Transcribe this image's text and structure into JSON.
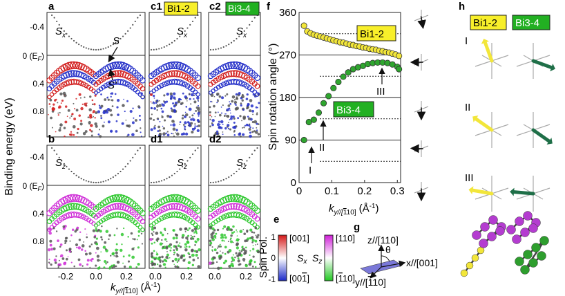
{
  "panels": {
    "a": "a",
    "b": "b",
    "c1": "c1",
    "c2": "c2",
    "d1": "d1",
    "d2": "d2",
    "e": "e",
    "f": "f",
    "g": "g",
    "h": "h"
  },
  "tags": {
    "bi12": "Bi1-2",
    "bi34": "Bi3-4"
  },
  "band_labels": {
    "sx": "S",
    "sx_sub": "x",
    "sz": "S",
    "sz_sub": "z",
    "S": "S",
    "Sp": "S'"
  },
  "band_axes": {
    "yticks": [
      "-0.4",
      "0 (E",
      "F",
      ")",
      "0.4",
      "0.8"
    ],
    "xticks_ab": [
      "-0.2",
      "0.0",
      "0.2"
    ],
    "xticks_cd": [
      "0.0",
      "0.2"
    ],
    "ylabel": "Binding energy (eV)",
    "xlabel_k": "k",
    "xlabel_sub": "y//[",
    "xlabel_bar": "1",
    "xlabel_sub2": "10]",
    "xlabel_unit": "(Å",
    "xlabel_exp": "-1",
    "xlabel_close": ")"
  },
  "chart_data": {
    "type": "scatter",
    "ylabel": "Spin rotation angle (°)",
    "xlabel": "ky//[1̄10] (Å-1)",
    "yticks": [
      "0",
      "90",
      "180",
      "270",
      "360"
    ],
    "xticks": [
      "0",
      "0.1",
      "0.2",
      "0.3"
    ],
    "xlim": [
      0,
      0.31
    ],
    "ylim": [
      0,
      360
    ],
    "series": [
      {
        "name": "Bi1-2",
        "color": "#f2e63a",
        "x": [
          0.015,
          0.025,
          0.035,
          0.045,
          0.055,
          0.065,
          0.075,
          0.085,
          0.095,
          0.105,
          0.115,
          0.125,
          0.135,
          0.145,
          0.155,
          0.165,
          0.175,
          0.185,
          0.195,
          0.205,
          0.215,
          0.225,
          0.235,
          0.245,
          0.255,
          0.265,
          0.275,
          0.285,
          0.295,
          0.305
        ],
        "y": [
          332,
          320,
          316,
          313,
          311,
          309,
          307,
          305,
          303,
          301,
          299,
          297,
          296,
          294,
          292,
          291,
          289,
          288,
          286,
          285,
          283,
          282,
          281,
          279,
          278,
          276,
          275,
          273,
          271,
          268
        ]
      },
      {
        "name": "Bi3-4",
        "color": "#2fa52f",
        "x": [
          0.015,
          0.03,
          0.045,
          0.06,
          0.075,
          0.09,
          0.105,
          0.12,
          0.135,
          0.15,
          0.165,
          0.18,
          0.195,
          0.21,
          0.225,
          0.24,
          0.255,
          0.27,
          0.285,
          0.3,
          0.305
        ],
        "y": [
          90,
          128,
          133,
          148,
          168,
          183,
          200,
          213,
          224,
          233,
          240,
          244,
          247,
          251,
          253,
          254,
          254,
          253,
          250,
          245,
          240
        ]
      }
    ],
    "hlines_solid": [
      90,
      180,
      270
    ],
    "hlines_dotted": [
      45,
      135,
      225,
      315
    ],
    "annotations": [
      "I",
      "II",
      "III"
    ]
  },
  "legend_e": {
    "title": "Spin Pol.",
    "ticks": [
      "1",
      "0",
      "-1"
    ],
    "sx": "S",
    "sx_sub": "x",
    "sz": "S",
    "sz_sub": "z",
    "sx_top": "[001]",
    "sx_bot_a": "[00",
    "sx_bot_bar": "1",
    "sx_bot_b": "]",
    "sz_top": "[110]",
    "sz_bot_a": "[",
    "sz_bot_bar": "1",
    "sz_bot_b": "10]"
  },
  "axes_g": {
    "z": "z//[110]",
    "theta": "θ",
    "x": "x//[001]",
    "y_a": "y//[",
    "y_bar": "1",
    "y_b": "10]"
  },
  "roman": {
    "I": "I",
    "II": "II",
    "III": "III"
  },
  "colors": {
    "red": "#d22020",
    "blue": "#2530c8",
    "magenta": "#d030d8",
    "green": "#30c830",
    "yellow": "#f2e63a",
    "darkgreen": "#1f6f48",
    "tagyellow": "#f8ef2a",
    "taggreen": "#22b022"
  }
}
